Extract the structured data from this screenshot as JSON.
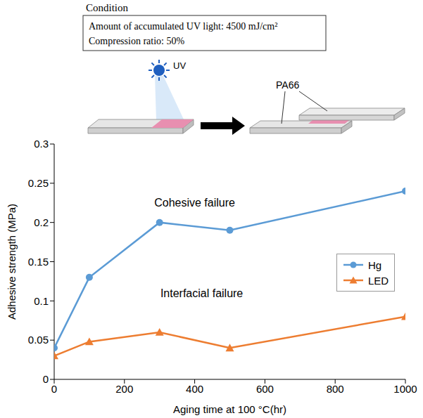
{
  "header": {
    "title": "Condition",
    "conditions": [
      "Amount of accumulated UV light: 4500 mJ/cm²",
      "Compression ratio: 50%"
    ]
  },
  "diagram": {
    "light_label": "UV",
    "material_label": "PA66"
  },
  "chart_data": {
    "type": "line",
    "x_label": "Aging time at 100 °C(hr)",
    "y_label": "Adhesive strength (MPa)",
    "x": [
      0,
      100,
      300,
      500,
      1000
    ],
    "series": [
      {
        "name": "Hg",
        "color": "#5b9bd5",
        "marker": "circle",
        "line_style": "solid",
        "values": [
          0.04,
          0.13,
          0.2,
          0.19,
          0.24
        ]
      },
      {
        "name": "LED",
        "color": "#ed7d31",
        "marker": "triangle",
        "line_style": "solid",
        "values": [
          0.03,
          0.048,
          0.06,
          0.04,
          0.08
        ]
      }
    ],
    "xlim": [
      0,
      1000
    ],
    "xticks": [
      0,
      200,
      400,
      600,
      800,
      1000
    ],
    "ylim": [
      0,
      0.3
    ],
    "yticks": [
      0,
      0.05,
      0.1,
      0.15,
      0.2,
      0.25,
      0.3
    ],
    "grid": false,
    "legend": "right",
    "annotations": [
      {
        "text": "Cohesive failure",
        "x": 400,
        "y": 0.225
      },
      {
        "text": "Interfacial failure",
        "x": 420,
        "y": 0.11
      }
    ]
  }
}
